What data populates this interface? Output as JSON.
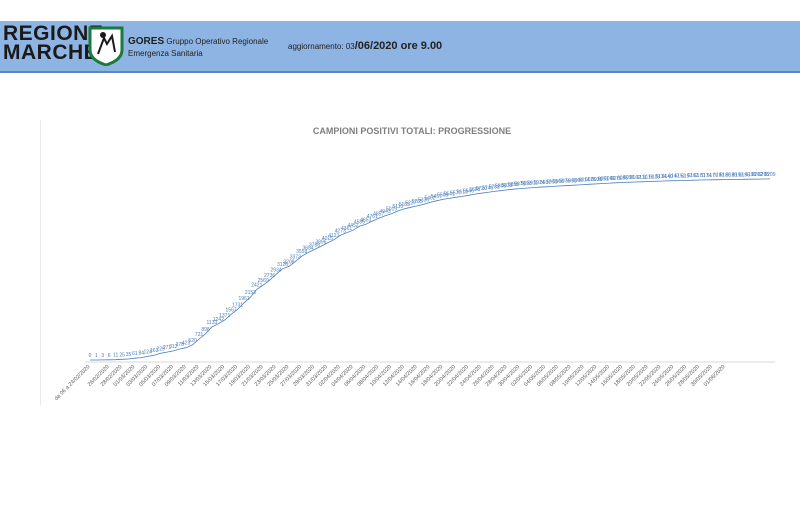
{
  "header": {
    "logo_line1": "REGIONE",
    "logo_line2": "MARCHE",
    "org_short": "GORES",
    "org_long_1": "Gruppo Operativo Regionale",
    "org_long_2": "Emergenza Sanitaria",
    "update_label": "aggiornamento: 03",
    "update_value": "/06/2020 ore 9.00"
  },
  "colors": {
    "header_bg": "#8eb4e3",
    "line": "#4a7ebb",
    "label": "#4a7ebb"
  },
  "chart_data": {
    "type": "line",
    "title": "CAMPIONI POSITIVI TOTALI: PROGRESSIONE",
    "xlabel": "",
    "ylabel": "",
    "grid": false,
    "legend": "none",
    "x_tick_labels": [
      "da 06 a 24/02/2020",
      "26/02/2020",
      "28/02/2020",
      "01/03/2020",
      "03/03/2020",
      "05/03/2020",
      "07/03/2020",
      "09/03/2020",
      "11/03/2020",
      "13/03/2020",
      "15/03/2020",
      "17/03/2020",
      "19/03/2020",
      "21/03/2020",
      "23/03/2020",
      "25/03/2020",
      "27/03/2020",
      "29/03/2020",
      "31/03/2020",
      "02/04/2020",
      "04/04/2020",
      "06/04/2020",
      "08/04/2020",
      "10/04/2020",
      "12/04/2020",
      "14/04/2020",
      "16/04/2020",
      "18/04/2020",
      "20/04/2020",
      "22/04/2020",
      "24/04/2020",
      "26/04/2020",
      "28/04/2020",
      "30/04/2020",
      "02/05/2020",
      "04/05/2020",
      "06/05/2020",
      "08/05/2020",
      "10/05/2020",
      "12/05/2020",
      "14/05/2020",
      "16/05/2020",
      "18/05/2020",
      "20/05/2020",
      "22/05/2020",
      "24/05/2020",
      "26/05/2020",
      "28/05/2020",
      "30/05/2020",
      "01/06/2020"
    ],
    "values": [
      0,
      1,
      3,
      6,
      11,
      25,
      35,
      61,
      84,
      124,
      163,
      229,
      271,
      312,
      378,
      423,
      520,
      721,
      898,
      1133,
      1242,
      1371,
      1567,
      1731,
      1961,
      2153,
      2421,
      2569,
      2736,
      2934,
      3126,
      3208,
      3373,
      3558,
      3684,
      3788,
      3896,
      4015,
      4121,
      4273,
      4361,
      4452,
      4585,
      4653,
      4761,
      4857,
      4943,
      5015,
      5110,
      5183,
      5237,
      5285,
      5336,
      5402,
      5457,
      5505,
      5541,
      5577,
      5610,
      5646,
      5688,
      5720,
      5746,
      5782,
      5805,
      5833,
      5855,
      5875,
      5893,
      5911,
      5924,
      5937,
      5950,
      5966,
      5976,
      5990,
      6000,
      6014,
      6026,
      6038,
      6051,
      6066,
      6075,
      6086,
      6096,
      6102,
      6111,
      6119,
      6128,
      6134,
      6140,
      6147,
      6152,
      6157,
      6163,
      6170,
      6174,
      6177,
      6181,
      6186,
      6189,
      6193,
      6196,
      6199,
      6202,
      6205,
      6209
    ],
    "ylim": [
      0,
      7200
    ]
  }
}
